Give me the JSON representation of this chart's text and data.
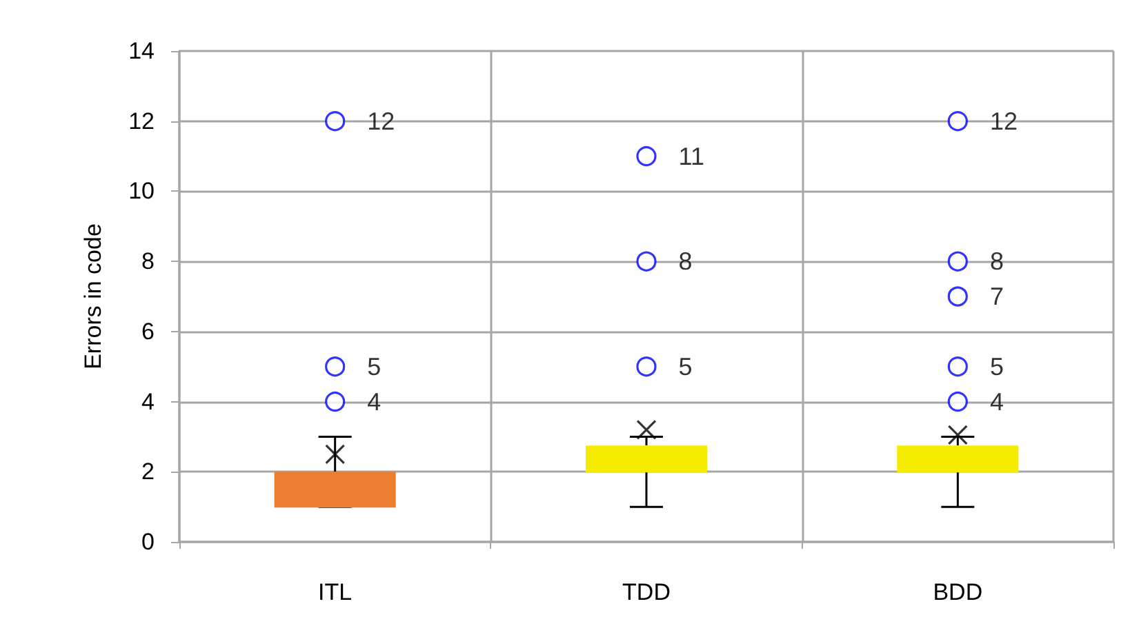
{
  "chart_data": {
    "type": "box",
    "ylabel": "Errors in code",
    "categories": [
      "ITL",
      "TDD",
      "BDD"
    ],
    "ylim": [
      0,
      14
    ],
    "yticks": [
      0,
      2,
      4,
      6,
      8,
      10,
      12,
      14
    ],
    "grid": true,
    "data_labels": true,
    "marker": "circle",
    "colors": [
      "#ed7d31",
      "#f5ec00",
      "#f5ec00"
    ],
    "boxes": [
      {
        "low": 1,
        "q1": 1,
        "median": 1,
        "q3": 2,
        "high": 3,
        "mean": 2.5
      },
      {
        "low": 1,
        "q1": 2,
        "median": 2,
        "q3": 2.75,
        "high": 3,
        "mean": 3.2
      },
      {
        "low": 1,
        "q1": 2,
        "median": 2,
        "q3": 2.75,
        "high": 3,
        "mean": 3.05
      }
    ],
    "series": [
      {
        "type": "scatter",
        "color": "#0000ff",
        "x": [
          "ITL",
          "ITL",
          "ITL",
          "TDD",
          "TDD",
          "TDD",
          "BDD",
          "BDD",
          "BDD",
          "BDD",
          "BDD"
        ],
        "values": [
          4,
          5,
          12,
          5,
          8,
          11,
          4,
          5,
          7,
          8,
          12
        ]
      }
    ]
  }
}
